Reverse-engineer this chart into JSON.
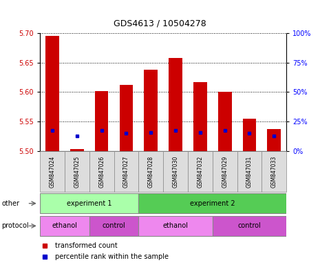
{
  "title": "GDS4613 / 10504278",
  "samples": [
    "GSM847024",
    "GSM847025",
    "GSM847026",
    "GSM847027",
    "GSM847028",
    "GSM847030",
    "GSM847032",
    "GSM847029",
    "GSM847031",
    "GSM847033"
  ],
  "red_values": [
    5.695,
    5.503,
    5.602,
    5.612,
    5.638,
    5.658,
    5.617,
    5.6,
    5.555,
    5.537
  ],
  "blue_values": [
    5.535,
    5.526,
    5.535,
    5.53,
    5.532,
    5.535,
    5.532,
    5.535,
    5.53,
    5.526
  ],
  "ylim": [
    5.5,
    5.7
  ],
  "yticks": [
    5.5,
    5.55,
    5.6,
    5.65,
    5.7
  ],
  "y2ticks": [
    0,
    25,
    50,
    75,
    100
  ],
  "y2labels": [
    "0%",
    "25%",
    "50%",
    "75%",
    "100%"
  ],
  "bar_color": "#cc0000",
  "blue_color": "#0000cc",
  "bar_width": 0.55,
  "exp1_color": "#aaffaa",
  "exp2_color": "#55cc55",
  "ethanol_color": "#ee88ee",
  "control_color": "#cc55cc",
  "label_other": "other",
  "label_protocol": "protocol",
  "label_exp1": "experiment 1",
  "label_exp2": "experiment 2",
  "label_ethanol": "ethanol",
  "label_control": "control",
  "legend_red": "transformed count",
  "legend_blue": "percentile rank within the sample"
}
